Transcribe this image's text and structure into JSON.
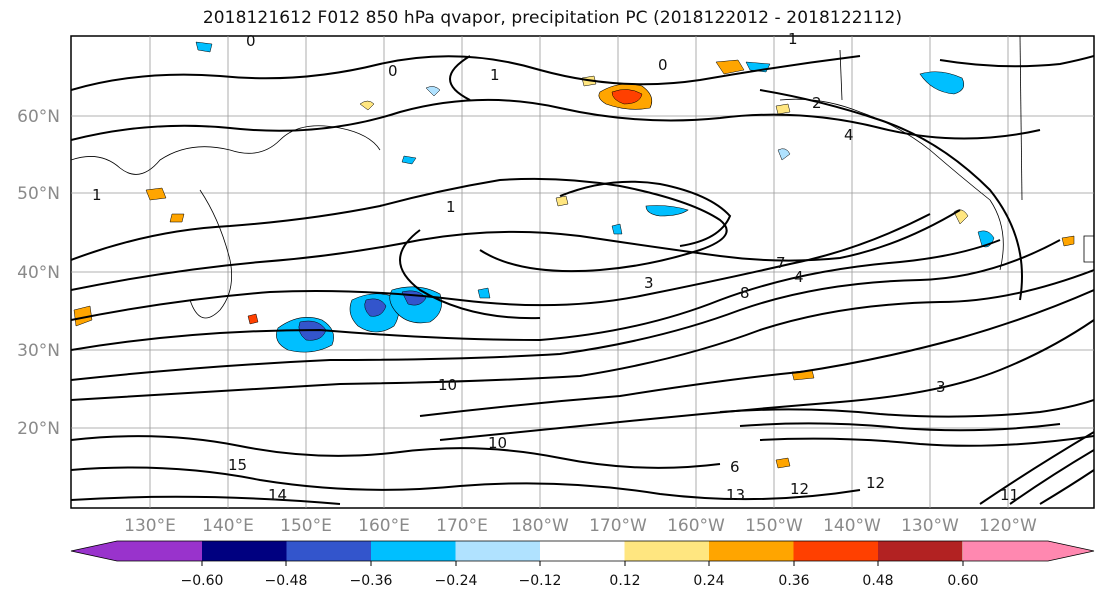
{
  "title": "2018121612 F012 850 hPa qvapor, precipitation PC (2018122012 - 2018122112)",
  "map": {
    "lat_labels": [
      "60°N",
      "50°N",
      "40°N",
      "30°N",
      "20°N"
    ],
    "lon_labels": [
      "130°E",
      "140°E",
      "150°E",
      "160°E",
      "170°E",
      "180°W",
      "170°W",
      "160°W",
      "150°W",
      "140°W",
      "130°W",
      "120°W"
    ],
    "contour_labels": [
      "0",
      "0",
      "0",
      "1",
      "1",
      "1",
      "1",
      "2",
      "3",
      "3",
      "4",
      "4",
      "6",
      "7",
      "8",
      "10",
      "10",
      "11",
      "12",
      "12",
      "13",
      "14",
      "15"
    ]
  },
  "colorbar": {
    "ticks": [
      "−0.60",
      "−0.48",
      "−0.36",
      "−0.24",
      "−0.12",
      "0.12",
      "0.24",
      "0.36",
      "0.48",
      "0.60"
    ],
    "colors": [
      "#9933cc",
      "#000080",
      "#3355cc",
      "#00bfff",
      "#b0e2ff",
      "#ffffff",
      "#ffe680",
      "#ffa500",
      "#ff4000",
      "#b22222",
      "#ff88b0"
    ]
  }
}
